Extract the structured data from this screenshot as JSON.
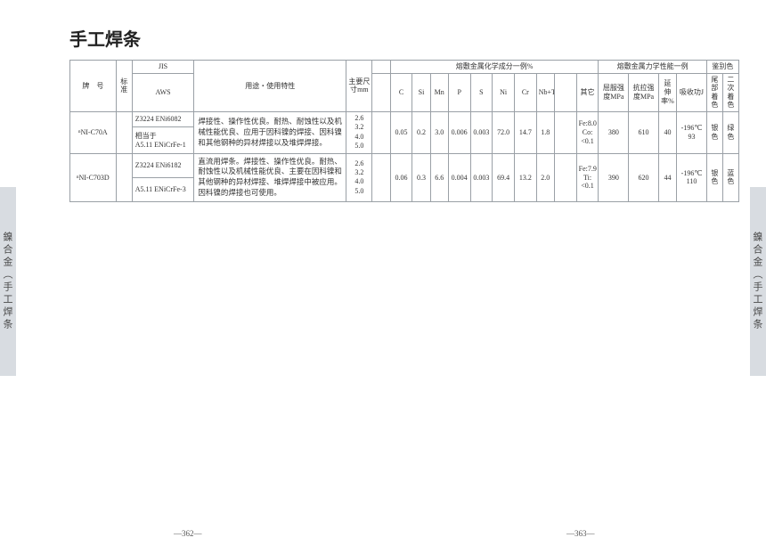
{
  "side_tab": {
    "text1": "鎳合金（手工焊条",
    "highlight": "焊条"
  },
  "title": "手工焊条",
  "headers": {
    "grade": "牌　号",
    "standard": "标准",
    "jis": "JIS",
    "aws": "AWS",
    "usage": "用途・使用特性",
    "sizes": "主要尺寸mm",
    "chem_group": "熔敷金属化学成分一例%",
    "mech_group": "熔敷金属力学性能一例",
    "color_group": "鉴别色",
    "c": "C",
    "si": "Si",
    "mn": "Mn",
    "p": "P",
    "s": "S",
    "ni": "Ni",
    "cr": "Cr",
    "nbta": "Nb+Ta",
    "other": "其它",
    "ys": "屈服强度MPa",
    "ts": "抗拉强度MPa",
    "el": "延伸率%",
    "im": "吸收功J",
    "tail": "尾部着色",
    "sec": "二次着色"
  },
  "rows": [
    {
      "grade": "ⁿNI-C70A",
      "jis": "Z3224 ENi6082",
      "aws_prefix": "相当于",
      "aws": "A5.11 ENiCrFe-1",
      "desc": "焊接性、操作性优良。耐热、耐蚀性以及机械性能优良、应用于因科镍的焊接、因科镍和其他钢种的异材焊接以及堆焊焊接。",
      "sizes": "2.6\n3.2\n4.0\n5.0",
      "c": "0.05",
      "si": "0.2",
      "mn": "3.0",
      "p": "0.006",
      "s": "0.003",
      "ni": "72.0",
      "cr": "14.7",
      "nbta": "1.8",
      "other": "Fe:8.0 Co:<0.1",
      "ys": "380",
      "ts": "610",
      "el": "40",
      "im": "-196℃ 93",
      "tail": "银色",
      "sec": "绿色"
    },
    {
      "grade": "ⁿNI-C703D",
      "jis": "Z3224 ENi6182",
      "aws_prefix": "",
      "aws": "A5.11 ENiCrFe-3",
      "desc": "直流用焊条。焊接性、操作性优良。耐热、耐蚀性以及机械性能优良、主要在因科镍和其他钢种的异材焊接、堆焊焊接中被应用。因科镍的焊接也可使用。",
      "sizes": "2.6\n3.2\n4.0\n5.0",
      "c": "0.06",
      "si": "0.3",
      "mn": "6.6",
      "p": "0.004",
      "s": "0.003",
      "ni": "69.4",
      "cr": "13.2",
      "nbta": "2.0",
      "other": "Fe:7.9 Ti:<0.1",
      "ys": "390",
      "ts": "620",
      "el": "44",
      "im": "-196℃ 110",
      "tail": "银色",
      "sec": "蓝色"
    }
  ],
  "page_left": "—362—",
  "page_right": "—363—"
}
